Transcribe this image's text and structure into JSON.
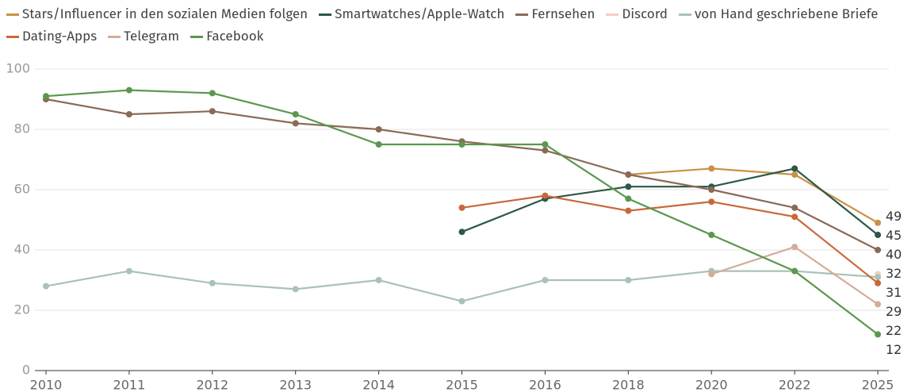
{
  "chart_data": {
    "type": "line",
    "categories": [
      "2010",
      "2011",
      "2012",
      "2013",
      "2014",
      "2015",
      "2016",
      "2018",
      "2020",
      "2022",
      "2025"
    ],
    "series": [
      {
        "name": "Stars/Influencer in den sozialen Medien folgen",
        "color": "#c99147",
        "values": [
          null,
          null,
          null,
          null,
          null,
          null,
          null,
          65,
          67,
          65,
          49
        ]
      },
      {
        "name": "Smartwatches/Apple-Watch",
        "color": "#2d5845",
        "values": [
          null,
          null,
          null,
          null,
          null,
          46,
          57,
          61,
          61,
          67,
          45
        ]
      },
      {
        "name": "Fernsehen",
        "color": "#8a6a55",
        "values": [
          90,
          85,
          86,
          82,
          80,
          76,
          73,
          65,
          60,
          54,
          40
        ]
      },
      {
        "name": "Discord",
        "color": "#f6cdc2",
        "values": [
          null,
          null,
          null,
          null,
          null,
          null,
          null,
          null,
          null,
          null,
          32
        ]
      },
      {
        "name": "von Hand geschriebene Briefe",
        "color": "#a9c2b6",
        "values": [
          28,
          33,
          29,
          27,
          30,
          23,
          30,
          30,
          33,
          33,
          31
        ]
      },
      {
        "name": "Dating-Apps",
        "color": "#c9683a",
        "values": [
          null,
          null,
          null,
          null,
          null,
          54,
          58,
          53,
          56,
          51,
          29
        ]
      },
      {
        "name": "Telegram",
        "color": "#d6ab9a",
        "values": [
          null,
          null,
          null,
          null,
          null,
          null,
          null,
          null,
          32,
          41,
          22
        ]
      },
      {
        "name": "Facebook",
        "color": "#5a984d",
        "values": [
          91,
          93,
          92,
          85,
          75,
          75,
          75,
          57,
          45,
          33,
          12
        ]
      }
    ],
    "ylim": [
      0,
      100
    ],
    "yticks": [
      0,
      20,
      40,
      60,
      80,
      100
    ],
    "grid": true
  }
}
